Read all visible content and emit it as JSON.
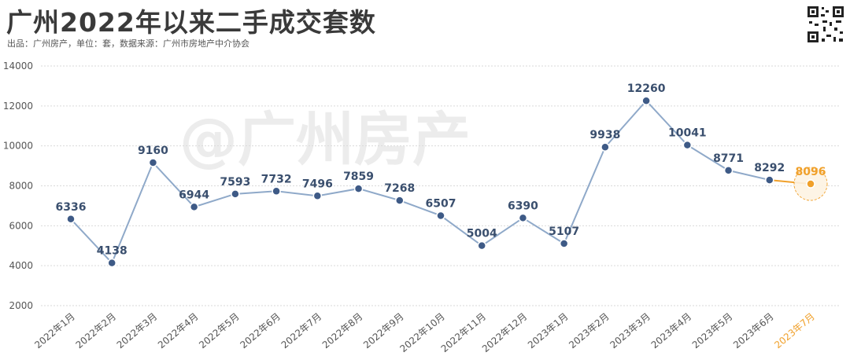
{
  "header": {
    "title": "广州2022年以来二手成交套数",
    "subtitle": "出品：广州房产，单位：套，数据来源：广州市房地产中介协会"
  },
  "watermark": "@广州房产",
  "colors": {
    "line": "#8fa9c9",
    "marker": "#3e5a86",
    "label": "#3a4f6e",
    "highlight": "#f0a02a",
    "grid": "#d9d9d9",
    "axis_text": "#555555"
  },
  "chart_data": {
    "type": "line",
    "title": "广州2022年以来二手成交套数",
    "xlabel": "",
    "ylabel": "",
    "categories": [
      "2022年1月",
      "2022年2月",
      "2022年3月",
      "2022年4月",
      "2022年5月",
      "2022年6月",
      "2022年7月",
      "2022年8月",
      "2022年9月",
      "2022年10月",
      "2022年11月",
      "2022年12月",
      "2023年1月",
      "2023年2月",
      "2023年3月",
      "2023年4月",
      "2023年5月",
      "2023年6月",
      "2023年7月"
    ],
    "series": [
      {
        "values": [
          6336,
          4138,
          9160,
          6944,
          7593,
          7732,
          7496,
          7859,
          7268,
          6507,
          5004,
          6390,
          5107,
          9938,
          12260,
          10041,
          8771,
          8292,
          8096
        ]
      }
    ],
    "highlight_index": 18,
    "ylim": [
      2000,
      14000
    ],
    "yticks": [
      2000,
      4000,
      6000,
      8000,
      10000,
      12000,
      14000
    ],
    "grid": true,
    "legend": "none"
  }
}
